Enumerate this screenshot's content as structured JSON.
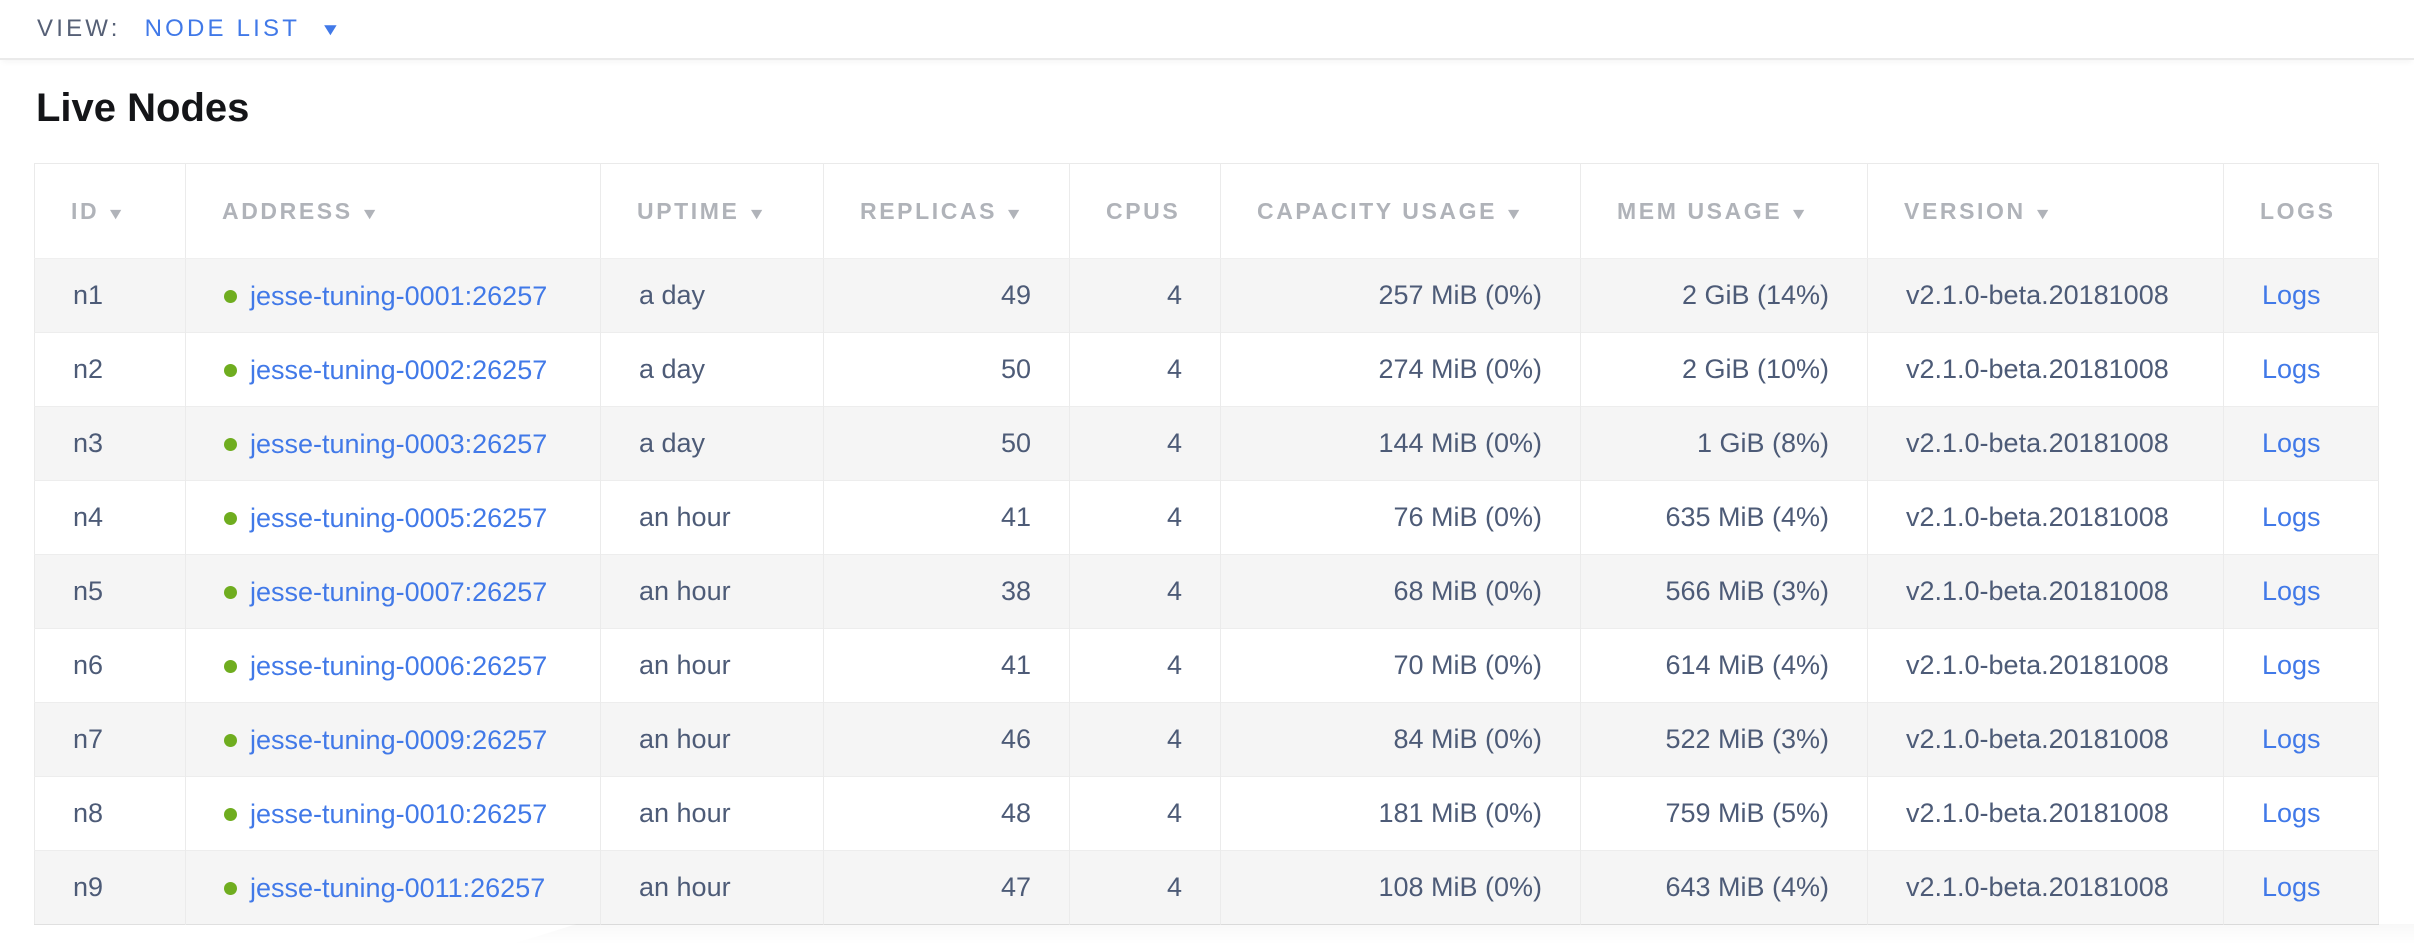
{
  "toolbar": {
    "view_label": "VIEW:",
    "view_value": "NODE LIST",
    "caret_glyph": "▼"
  },
  "page": {
    "title": "Live Nodes"
  },
  "table": {
    "sort_arrow_glyph": "▼",
    "columns": [
      {
        "key": "id",
        "label": "ID",
        "sortable": true,
        "align": "left"
      },
      {
        "key": "address",
        "label": "ADDRESS",
        "sortable": true,
        "align": "left"
      },
      {
        "key": "uptime",
        "label": "UPTIME",
        "sortable": true,
        "align": "left"
      },
      {
        "key": "replicas",
        "label": "REPLICAS",
        "sortable": true,
        "align": "right"
      },
      {
        "key": "cpus",
        "label": "CPUS",
        "sortable": false,
        "align": "right"
      },
      {
        "key": "capacity",
        "label": "CAPACITY USAGE",
        "sortable": true,
        "align": "right"
      },
      {
        "key": "mem",
        "label": "MEM USAGE",
        "sortable": true,
        "align": "right"
      },
      {
        "key": "version",
        "label": "VERSION",
        "sortable": true,
        "align": "left"
      },
      {
        "key": "logs",
        "label": "LOGS",
        "sortable": false,
        "align": "left"
      }
    ],
    "rows": [
      {
        "id": "n1",
        "address": "jesse-tuning-0001:26257",
        "uptime": "a day",
        "replicas": "49",
        "cpus": "4",
        "capacity": "257 MiB (0%)",
        "mem": "2 GiB (14%)",
        "version": "v2.1.0-beta.20181008",
        "logs": "Logs"
      },
      {
        "id": "n2",
        "address": "jesse-tuning-0002:26257",
        "uptime": "a day",
        "replicas": "50",
        "cpus": "4",
        "capacity": "274 MiB (0%)",
        "mem": "2 GiB (10%)",
        "version": "v2.1.0-beta.20181008",
        "logs": "Logs"
      },
      {
        "id": "n3",
        "address": "jesse-tuning-0003:26257",
        "uptime": "a day",
        "replicas": "50",
        "cpus": "4",
        "capacity": "144 MiB (0%)",
        "mem": "1 GiB (8%)",
        "version": "v2.1.0-beta.20181008",
        "logs": "Logs"
      },
      {
        "id": "n4",
        "address": "jesse-tuning-0005:26257",
        "uptime": "an hour",
        "replicas": "41",
        "cpus": "4",
        "capacity": "76 MiB (0%)",
        "mem": "635 MiB (4%)",
        "version": "v2.1.0-beta.20181008",
        "logs": "Logs"
      },
      {
        "id": "n5",
        "address": "jesse-tuning-0007:26257",
        "uptime": "an hour",
        "replicas": "38",
        "cpus": "4",
        "capacity": "68 MiB (0%)",
        "mem": "566 MiB (3%)",
        "version": "v2.1.0-beta.20181008",
        "logs": "Logs"
      },
      {
        "id": "n6",
        "address": "jesse-tuning-0006:26257",
        "uptime": "an hour",
        "replicas": "41",
        "cpus": "4",
        "capacity": "70 MiB (0%)",
        "mem": "614 MiB (4%)",
        "version": "v2.1.0-beta.20181008",
        "logs": "Logs"
      },
      {
        "id": "n7",
        "address": "jesse-tuning-0009:26257",
        "uptime": "an hour",
        "replicas": "46",
        "cpus": "4",
        "capacity": "84 MiB (0%)",
        "mem": "522 MiB (3%)",
        "version": "v2.1.0-beta.20181008",
        "logs": "Logs"
      },
      {
        "id": "n8",
        "address": "jesse-tuning-0010:26257",
        "uptime": "an hour",
        "replicas": "48",
        "cpus": "4",
        "capacity": "181 MiB (0%)",
        "mem": "759 MiB (5%)",
        "version": "v2.1.0-beta.20181008",
        "logs": "Logs"
      },
      {
        "id": "n9",
        "address": "jesse-tuning-0011:26257",
        "uptime": "an hour",
        "replicas": "47",
        "cpus": "4",
        "capacity": "108 MiB (0%)",
        "mem": "643 MiB (4%)",
        "version": "v2.1.0-beta.20181008",
        "logs": "Logs"
      }
    ]
  },
  "colors": {
    "link_blue": "#4179e8",
    "status_dot_green": "#6fad1f",
    "header_gray": "#b0b3b9",
    "text_slate": "#4d5b77",
    "row_stripe": "#f5f5f5"
  }
}
